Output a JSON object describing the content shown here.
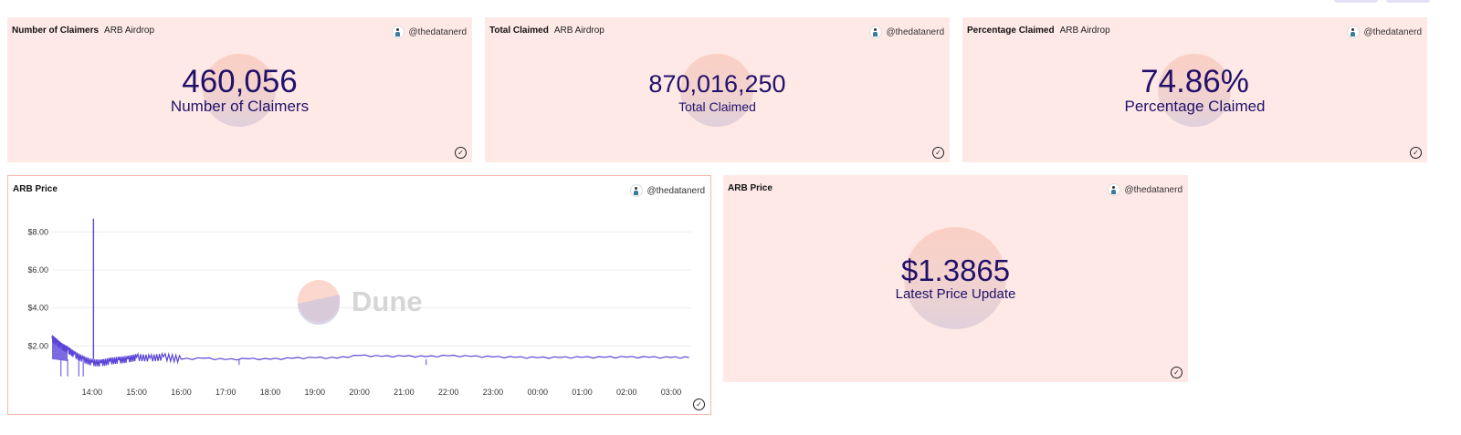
{
  "cards": {
    "claimers": {
      "title": "Number of Claimers",
      "subtitle": "ARB Airdrop",
      "author": "@thedatanerd",
      "value": "460,056",
      "label": "Number of Claimers"
    },
    "total": {
      "title": "Total Claimed",
      "subtitle": "ARB Airdrop",
      "author": "@thedatanerd",
      "value": "870,016,250",
      "label": "Total Claimed"
    },
    "percentage": {
      "title": "Percentage Claimed",
      "subtitle": "ARB Airdrop",
      "author": "@thedatanerd",
      "value": "74.86%",
      "label": "Percentage Claimed"
    },
    "price_chart": {
      "title": "ARB Price",
      "author": "@thedatanerd",
      "watermark": "Dune"
    },
    "latest": {
      "title": "ARB Price",
      "author": "@thedatanerd",
      "value": "$1.3865",
      "label": "Latest Price Update"
    }
  },
  "colors": {
    "card_bg": "#fee9e7",
    "value_text": "#22116a",
    "line": "#5b45d8"
  },
  "icons": {
    "verified": "check-circle-icon",
    "avatar": "author-avatar"
  },
  "chart_data": {
    "type": "line",
    "title": "ARB Price",
    "xlabel": "",
    "ylabel": "",
    "x_ticks": [
      "14:00",
      "15:00",
      "16:00",
      "17:00",
      "18:00",
      "19:00",
      "20:00",
      "21:00",
      "22:00",
      "23:00",
      "00:00",
      "01:00",
      "02:00",
      "03:00"
    ],
    "y_ticks": [
      "$2.00",
      "$4.00",
      "$6.00",
      "$8.00"
    ],
    "y_tick_values": [
      2,
      4,
      6,
      8
    ],
    "xlim": [
      13.1,
      27.45
    ],
    "ylim": [
      0,
      9.6
    ],
    "spike": {
      "x": 14.03,
      "y": 8.7
    },
    "series": [
      {
        "name": "ARB Price",
        "x": [
          13.1,
          13.2,
          13.3,
          13.45,
          13.6,
          13.8,
          14.0,
          14.2,
          14.4,
          14.6,
          14.8,
          15.0,
          15.3,
          15.6,
          16.0,
          16.5,
          17.0,
          17.5,
          18.0,
          18.5,
          19.0,
          19.5,
          20.0,
          20.5,
          21.0,
          21.5,
          22.0,
          22.5,
          23.0,
          23.5,
          24.0,
          24.5,
          25.0,
          25.5,
          26.0,
          26.5,
          27.0,
          27.4
        ],
        "y": [
          2.4,
          2.2,
          2.0,
          1.8,
          1.55,
          1.3,
          1.12,
          1.1,
          1.2,
          1.25,
          1.3,
          1.4,
          1.35,
          1.42,
          1.3,
          1.35,
          1.28,
          1.32,
          1.3,
          1.35,
          1.38,
          1.36,
          1.5,
          1.45,
          1.46,
          1.44,
          1.48,
          1.45,
          1.42,
          1.4,
          1.38,
          1.39,
          1.4,
          1.4,
          1.41,
          1.4,
          1.39,
          1.39
        ]
      }
    ]
  }
}
